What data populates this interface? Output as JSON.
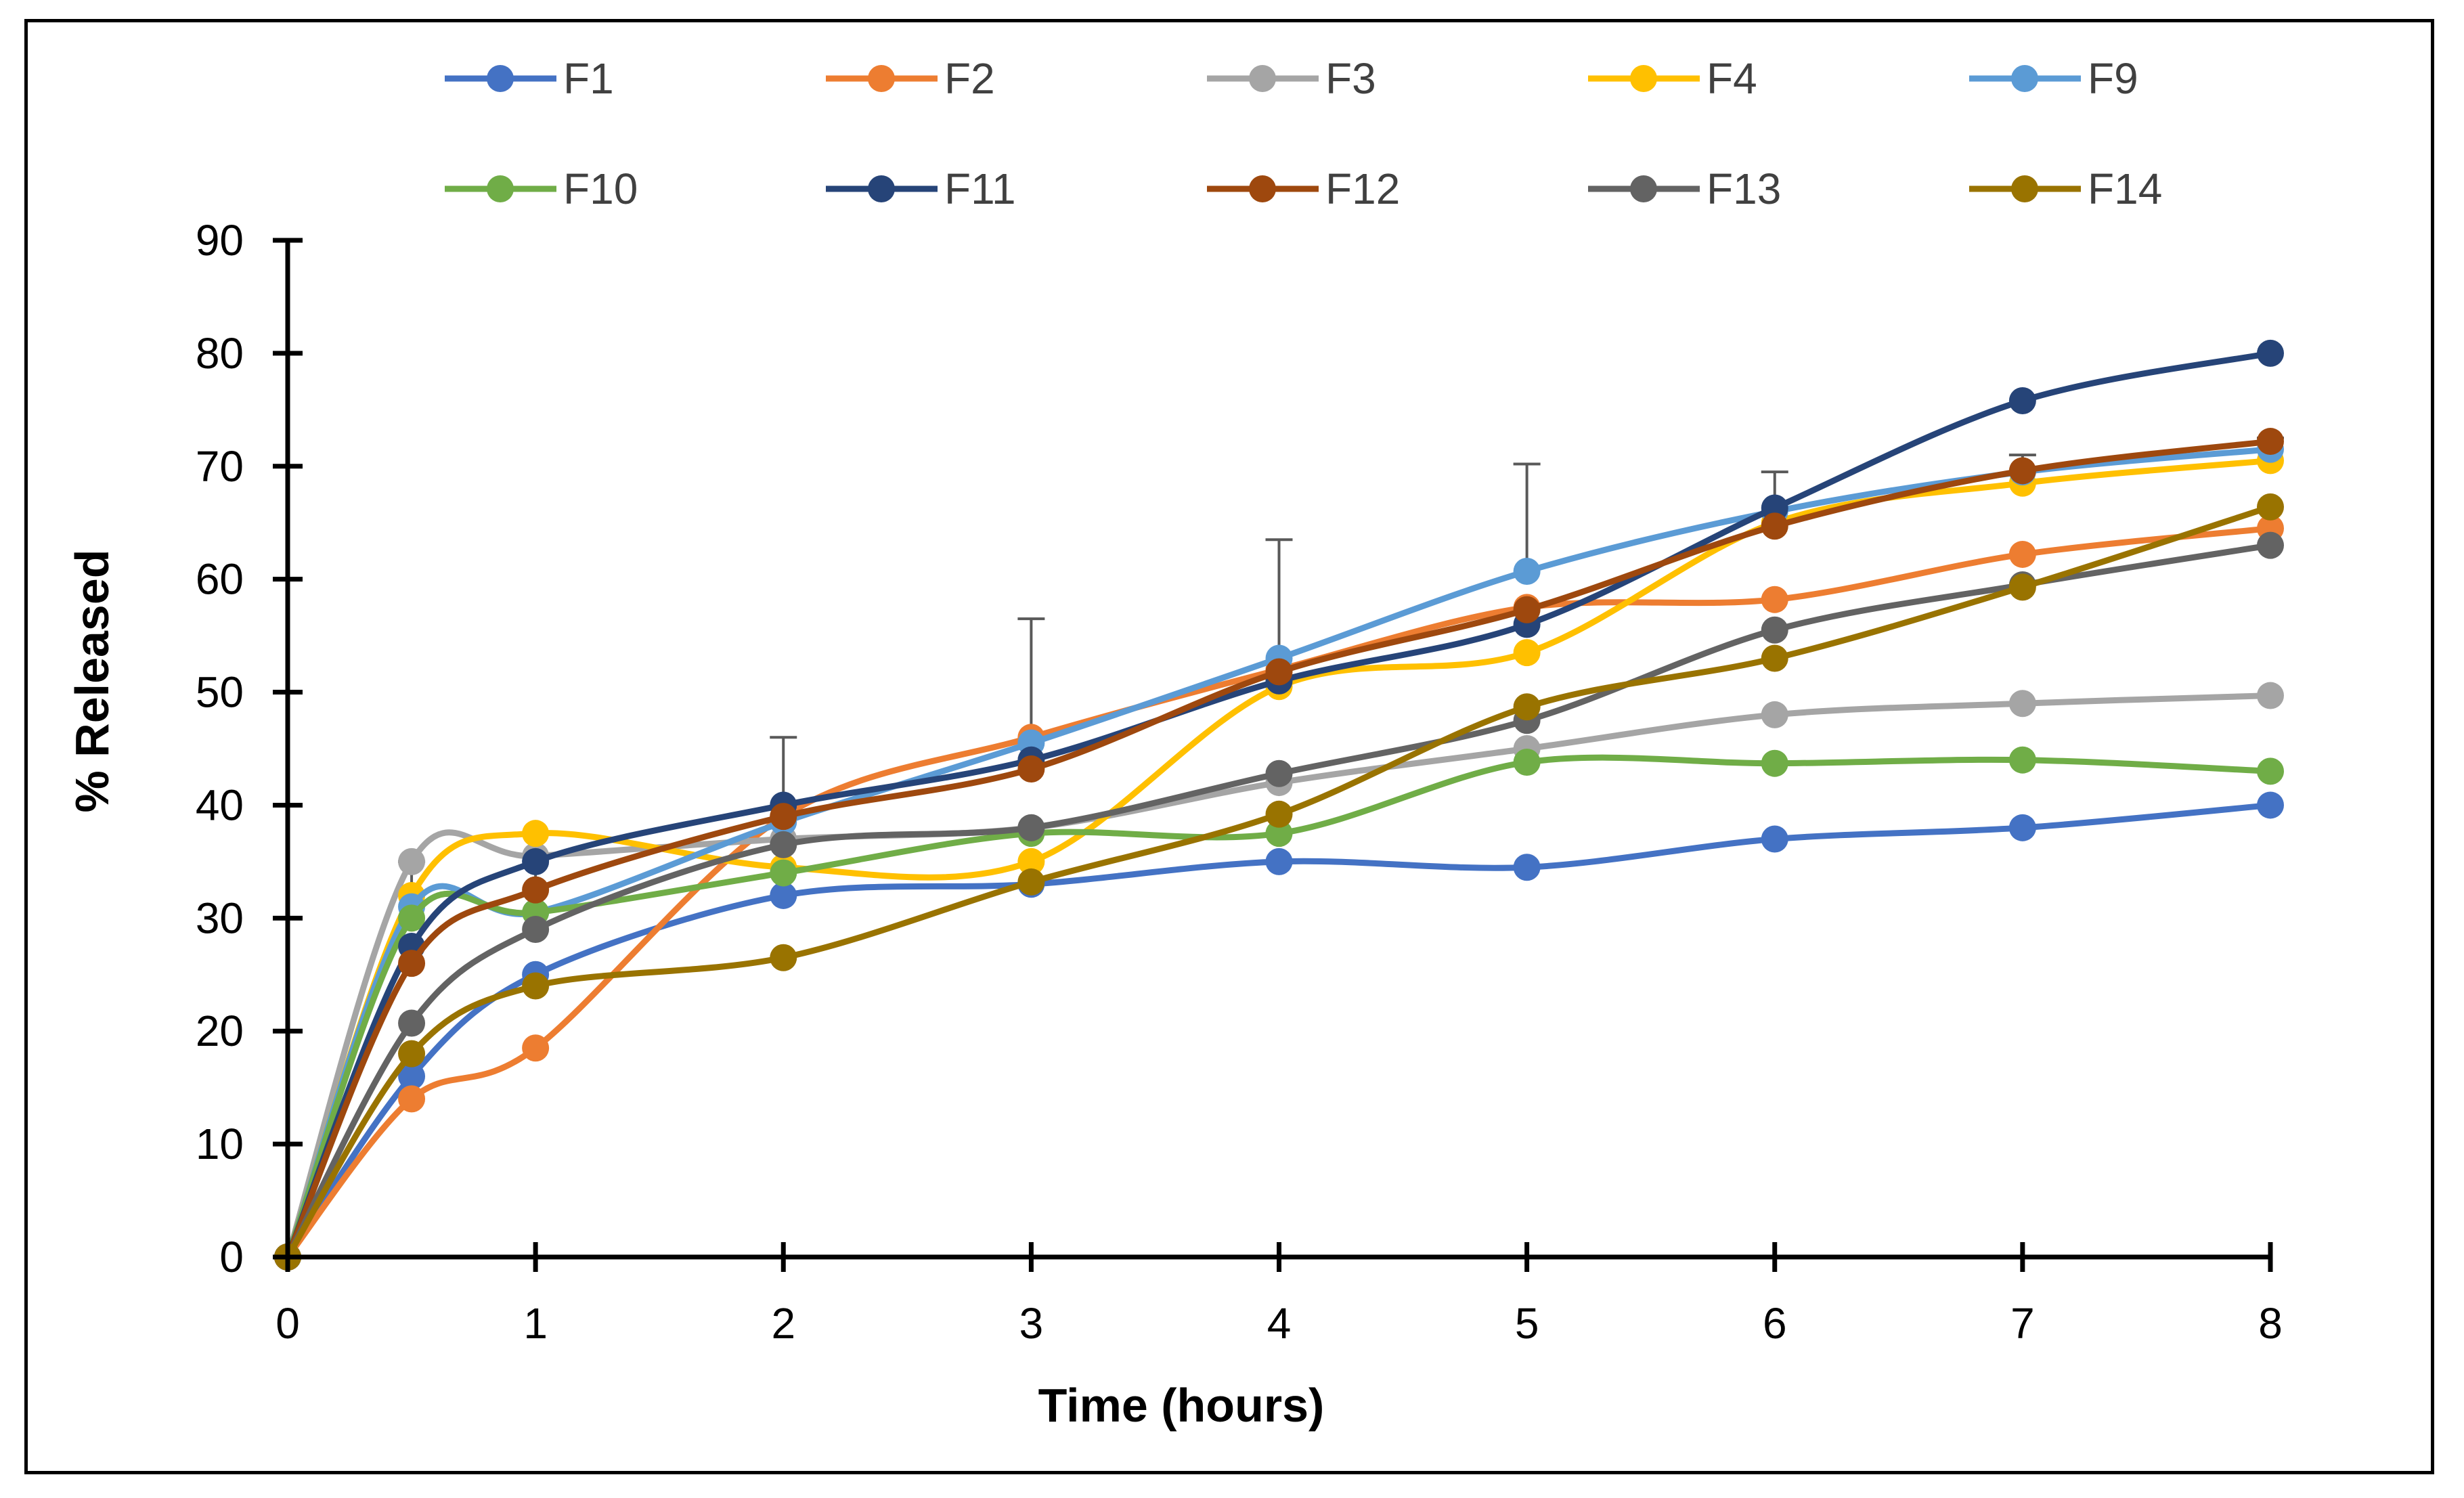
{
  "chart_data": {
    "type": "line",
    "title": "",
    "xlabel": "Time (hours)",
    "ylabel": "% Released",
    "xlim": [
      0,
      8
    ],
    "ylim": [
      0,
      90
    ],
    "xticks": [
      "0",
      "1",
      "2",
      "3",
      "4",
      "5",
      "6",
      "7",
      "8"
    ],
    "yticks": [
      "0",
      "10",
      "20",
      "30",
      "40",
      "50",
      "60",
      "70",
      "80",
      "90"
    ],
    "grid": false,
    "legend_position": "top",
    "x": [
      0,
      0.5,
      1,
      2,
      3,
      4,
      5,
      6,
      7,
      8
    ],
    "series": [
      {
        "name": "F1",
        "color": "#4472C4",
        "values": [
          0,
          16,
          25,
          32,
          33,
          35,
          34.5,
          37,
          38,
          40
        ]
      },
      {
        "name": "F2",
        "color": "#ED7D31",
        "values": [
          0,
          14,
          18.5,
          39,
          46,
          52,
          57.5,
          58.2,
          62.2,
          64.5
        ]
      },
      {
        "name": "F3",
        "color": "#A5A5A5",
        "values": [
          0,
          35,
          35.5,
          37,
          38,
          42,
          45,
          48,
          49,
          49.7
        ]
      },
      {
        "name": "F4",
        "color": "#FFC000",
        "values": [
          0,
          32,
          37.5,
          34.5,
          35,
          50.5,
          53.5,
          65,
          68.5,
          70.5
        ]
      },
      {
        "name": "F9",
        "color": "#5B9BD5",
        "values": [
          0,
          31,
          30.5,
          38.5,
          45.5,
          53,
          60.7,
          66,
          69.5,
          71.5
        ],
        "errors": [
          0,
          4,
          7,
          7.5,
          11,
          10.5,
          9.5,
          3.5,
          1.5,
          1
        ]
      },
      {
        "name": "F10",
        "color": "#70AD47",
        "values": [
          0,
          30,
          30.5,
          34,
          37.5,
          37.5,
          43.8,
          43.7,
          44,
          43
        ]
      },
      {
        "name": "F11",
        "color": "#264478",
        "values": [
          0,
          27.5,
          35,
          40,
          44,
          51,
          56,
          66.3,
          75.8,
          80
        ]
      },
      {
        "name": "F12",
        "color": "#9E480E",
        "values": [
          0,
          26,
          32.5,
          39,
          43.2,
          51.8,
          57.3,
          64.7,
          69.6,
          72.2
        ]
      },
      {
        "name": "F13",
        "color": "#636363",
        "values": [
          0,
          20.7,
          29,
          36.5,
          38,
          42.8,
          47.5,
          55.5,
          59.5,
          63
        ]
      },
      {
        "name": "F14",
        "color": "#997300",
        "values": [
          0,
          18,
          24,
          26.5,
          33.2,
          39.2,
          48.7,
          53,
          59.3,
          66.4
        ]
      }
    ]
  }
}
